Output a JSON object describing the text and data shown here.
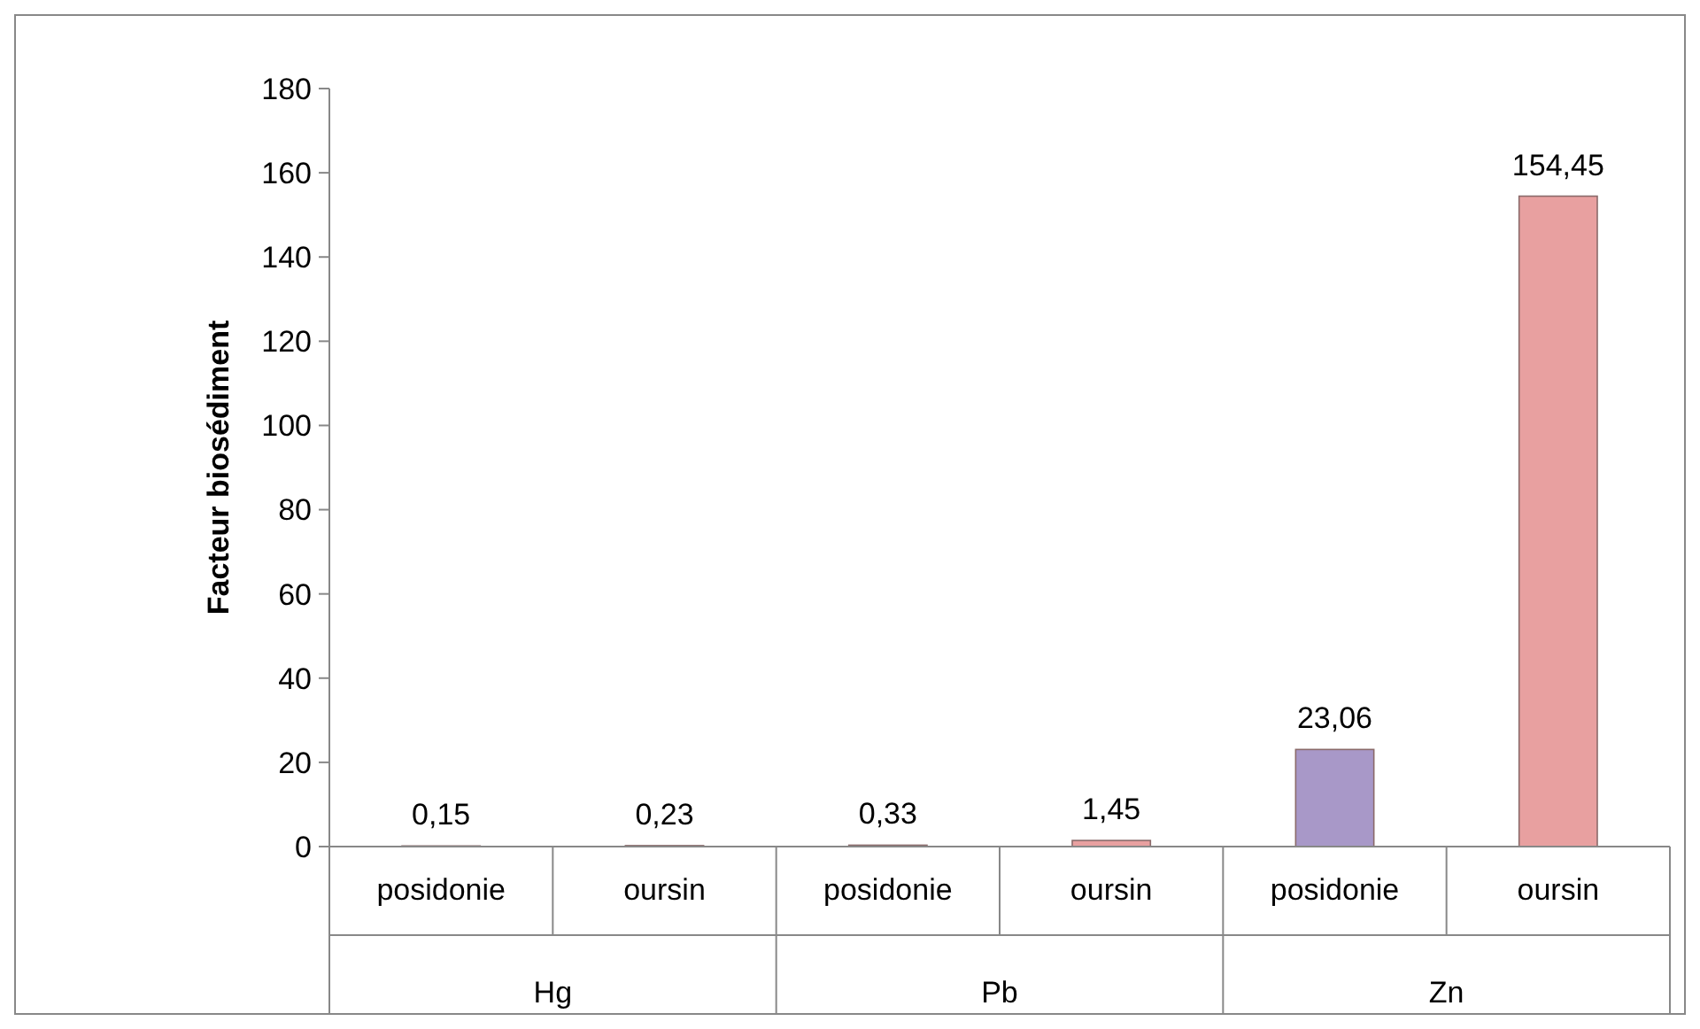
{
  "chart_data": {
    "type": "bar",
    "ylabel": "Facteur biosédiment",
    "categories": [
      "posidonie",
      "oursin",
      "posidonie",
      "oursin",
      "posidonie",
      "oursin"
    ],
    "values": [
      0.15,
      0.23,
      0.33,
      1.45,
      23.06,
      154.45
    ],
    "colors": [
      "#a898c8",
      "#e8a0a0",
      "#a898c8",
      "#e8a0a0",
      "#a898c8",
      "#e8a0a0"
    ],
    "value_labels": [
      "0,15",
      "0,23",
      "0,33",
      "1,45",
      "23,06",
      "154,45"
    ],
    "annotations": [
      "Hg",
      "Pb",
      "Zn"
    ],
    "ylim": [
      0,
      180
    ],
    "yticks": [
      0,
      20,
      40,
      60,
      80,
      100,
      120,
      140,
      160,
      180
    ]
  }
}
